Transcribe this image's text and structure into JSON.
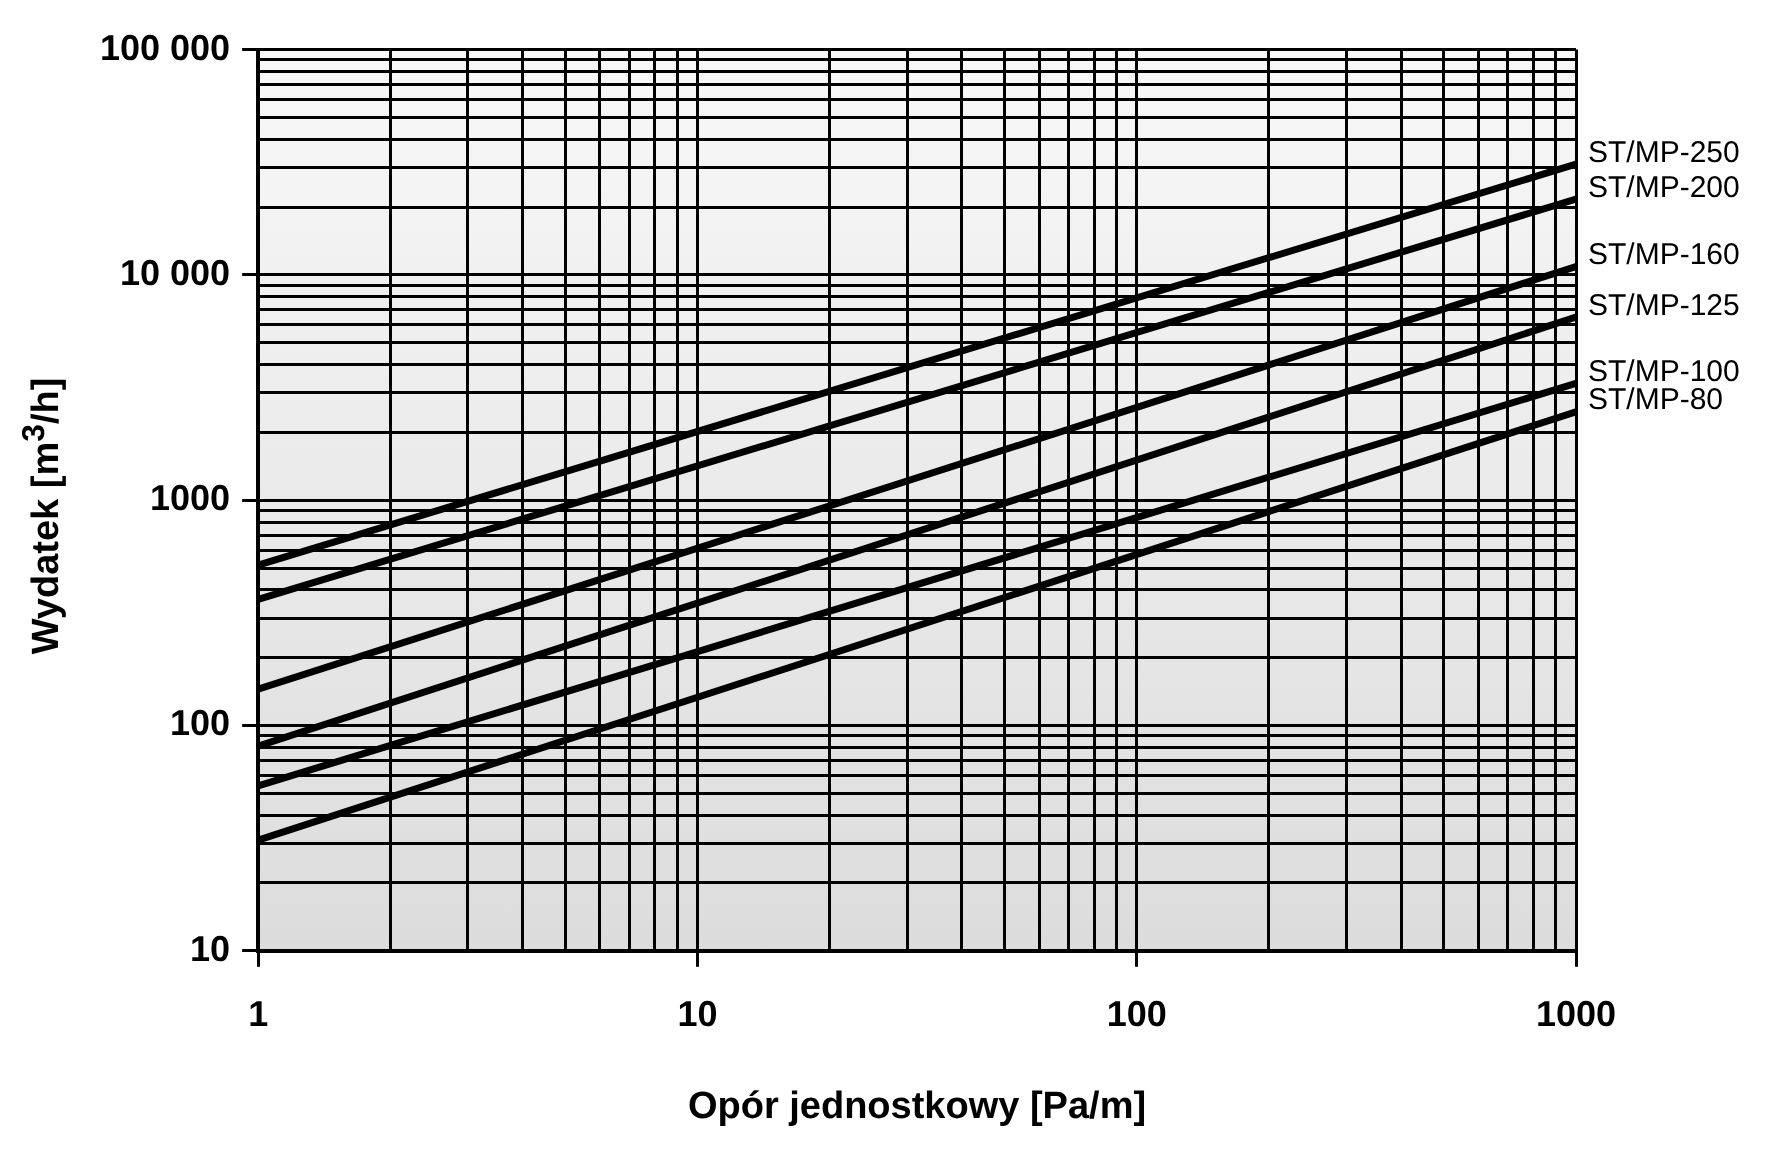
{
  "chart_data": {
    "type": "line",
    "xlabel": "Opór jednostkowy  [Pa/m]",
    "ylabel": "Wydatek  [m$^{3}$/h]",
    "log": "xy",
    "grid": true,
    "legend": false,
    "marker": "none",
    "line_style": "solid",
    "x": [
      1,
      1000
    ],
    "xlim": [
      1,
      1000
    ],
    "ylim": [
      10,
      100000
    ],
    "xticks": [
      1,
      {
        "value": 2,
        "label": null
      },
      {
        "value": 3,
        "label": null
      },
      {
        "value": 4,
        "label": null
      },
      {
        "value": 5,
        "label": null
      },
      {
        "value": 6,
        "label": null
      },
      {
        "value": 7,
        "label": null
      },
      {
        "value": 8,
        "label": null
      },
      {
        "value": 9,
        "label": null
      },
      10,
      {
        "value": 20,
        "label": null
      },
      {
        "value": 30,
        "label": null
      },
      {
        "value": 40,
        "label": null
      },
      {
        "value": 50,
        "label": null
      },
      {
        "value": 60,
        "label": null
      },
      {
        "value": 70,
        "label": null
      },
      {
        "value": 80,
        "label": null
      },
      {
        "value": 90,
        "label": null
      },
      100,
      {
        "value": 200,
        "label": null
      },
      {
        "value": 300,
        "label": null
      },
      {
        "value": 400,
        "label": null
      },
      {
        "value": 500,
        "label": null
      },
      {
        "value": 600,
        "label": null
      },
      {
        "value": 700,
        "label": null
      },
      {
        "value": 800,
        "label": null
      },
      {
        "value": 900,
        "label": null
      },
      1000
    ],
    "yticks": [
      10,
      {
        "value": 20,
        "label": null
      },
      {
        "value": 30,
        "label": null
      },
      {
        "value": 40,
        "label": null
      },
      {
        "value": 50,
        "label": null
      },
      {
        "value": 60,
        "label": null
      },
      {
        "value": 70,
        "label": null
      },
      {
        "value": 80,
        "label": null
      },
      {
        "value": 90,
        "label": null
      },
      100,
      {
        "value": 200,
        "label": null
      },
      {
        "value": 300,
        "label": null
      },
      {
        "value": 400,
        "label": null
      },
      {
        "value": 500,
        "label": null
      },
      {
        "value": 600,
        "label": null
      },
      {
        "value": 700,
        "label": null
      },
      {
        "value": 800,
        "label": null
      },
      {
        "value": 900,
        "label": null
      },
      1000,
      {
        "value": 2000,
        "label": null
      },
      {
        "value": 3000,
        "label": null
      },
      {
        "value": 4000,
        "label": null
      },
      {
        "value": 5000,
        "label": null
      },
      {
        "value": 6000,
        "label": null
      },
      {
        "value": 7000,
        "label": null
      },
      {
        "value": 8000,
        "label": null
      },
      {
        "value": 9000,
        "label": null
      },
      {
        "value": 10000,
        "label": "10 000"
      },
      {
        "value": 20000,
        "label": null
      },
      {
        "value": 30000,
        "label": null
      },
      {
        "value": 40000,
        "label": null
      },
      {
        "value": 50000,
        "label": null
      },
      {
        "value": 60000,
        "label": null
      },
      {
        "value": 70000,
        "label": null
      },
      {
        "value": 80000,
        "label": null
      },
      {
        "value": 90000,
        "label": null
      },
      {
        "value": 100000,
        "label": "100 000"
      }
    ],
    "series": [
      {
        "name": "ST/MP-250",
        "color": "#000000",
        "values": [
          515,
          31000
        ]
      },
      {
        "name": "ST/MP-200",
        "color": "#000000",
        "values": [
          363,
          21700
        ]
      },
      {
        "name": "ST/MP-160",
        "color": "#000000",
        "values": [
          145,
          10900
        ]
      },
      {
        "name": "ST/MP-125",
        "color": "#000000",
        "values": [
          81,
          6500
        ]
      },
      {
        "name": "ST/MP-100",
        "color": "#000000",
        "values": [
          54,
          3300
        ]
      },
      {
        "name": "ST/MP-80",
        "color": "#000000",
        "values": [
          31,
          2470
        ]
      }
    ]
  }
}
